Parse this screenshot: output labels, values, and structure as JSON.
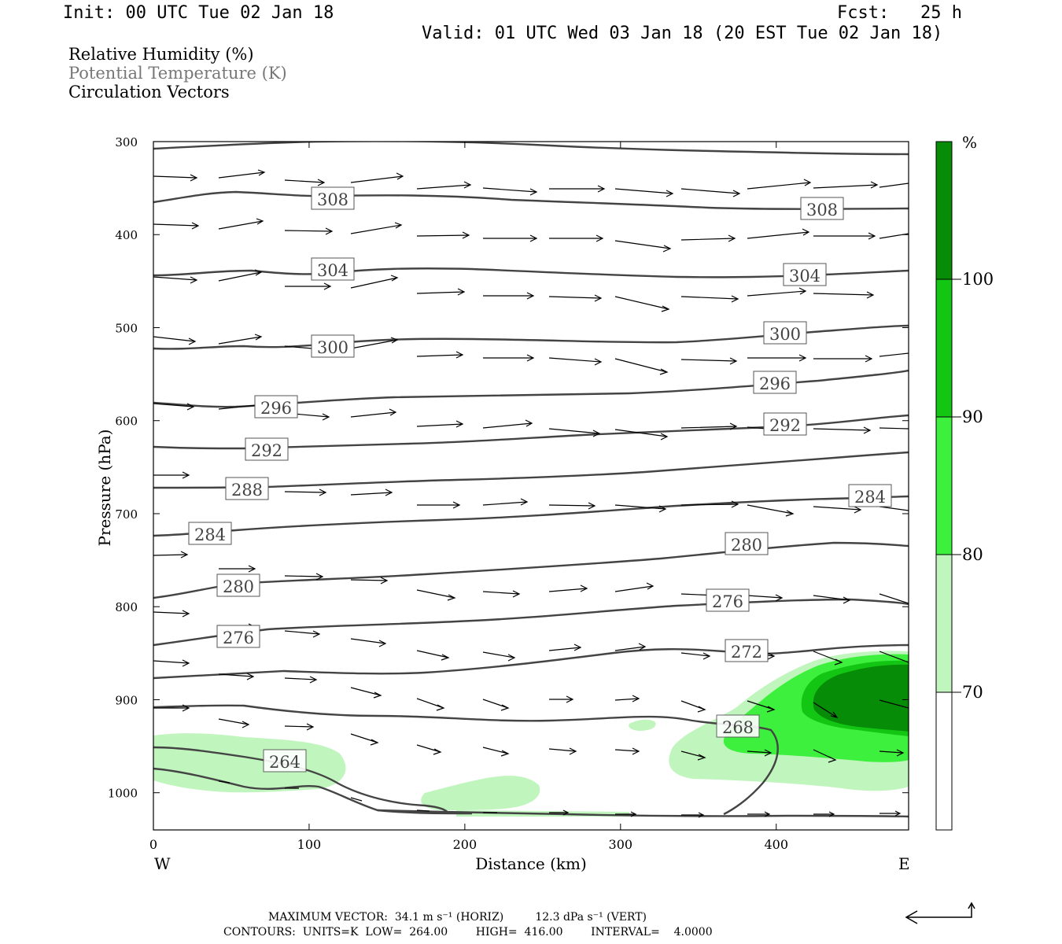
{
  "header": {
    "init": "Init: 00 UTC Tue 02 Jan 18",
    "fcst": "Fcst:   25 h",
    "valid": "Valid: 01 UTC Wed 03 Jan 18 (20 EST Tue 02 Jan 18)"
  },
  "fields": {
    "rh": "Relative Humidity (%)",
    "theta": "Potential Temperature (K)",
    "vectors": "Circulation Vectors"
  },
  "footer": {
    "max_vector": "MAXIMUM VECTOR:  34.1 m s⁻¹ (HORIZ)         12.3 dPa s⁻¹ (VERT)",
    "contours": "CONTOURS:  UNITS=K  LOW=  264.00        HIGH=  416.00        INTERVAL=    4.0000"
  },
  "colors": {
    "rh70": "#c0f5bd",
    "rh80": "#3df03d",
    "rh90": "#13c613",
    "rh100": "#078c07",
    "contour": "#444444"
  },
  "chart_data": {
    "type": "cross-section",
    "xlabel": "Distance (km)",
    "ylabel": "Pressure (hPa)",
    "x_ticks": [
      0,
      100,
      200,
      300,
      400
    ],
    "x_ends": [
      "W",
      "E"
    ],
    "xlim": [
      0,
      485
    ],
    "y_ticks": [
      300,
      400,
      500,
      600,
      700,
      800,
      900,
      1000
    ],
    "ylim": [
      300,
      1040
    ],
    "rh_colorbar": {
      "unit": "%",
      "levels": [
        70,
        80,
        90,
        100
      ]
    },
    "theta_label_values": [
      "308",
      "308",
      "304",
      "304",
      "300",
      "300",
      "296",
      "296",
      "292",
      "292",
      "288",
      "284",
      "284",
      "280",
      "280",
      "276",
      "276",
      "272",
      "268",
      "264"
    ]
  }
}
